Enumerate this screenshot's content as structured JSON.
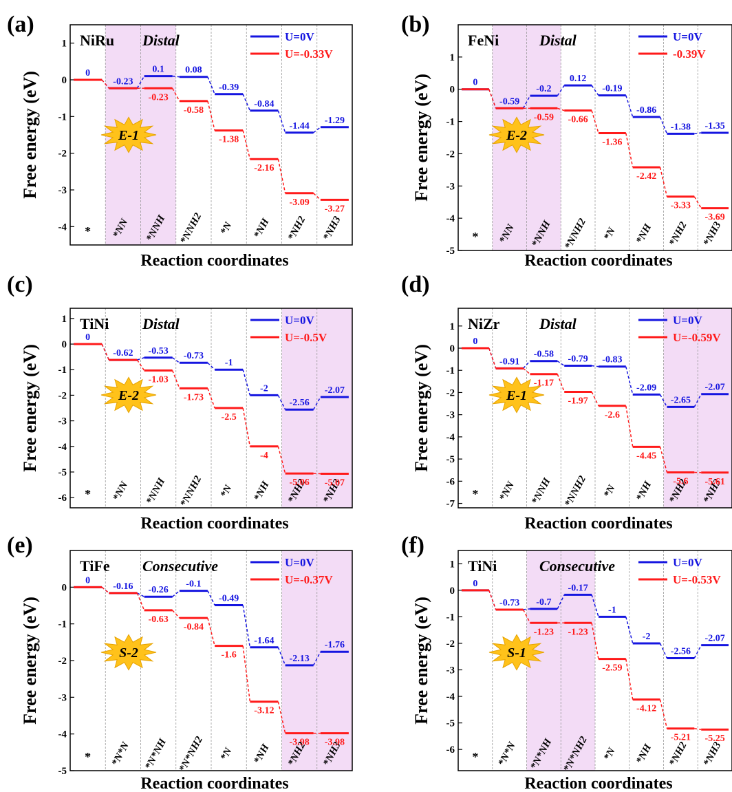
{
  "figure": {
    "ylabel": "Free energy (eV)",
    "xlabel": "Reaction coordinates",
    "legend_u0": "U=0V"
  },
  "colors": {
    "u0": "#1515e0",
    "uneg": "#ff1a1a",
    "highlight": "#f3dcf6",
    "badge": "#ffc21a",
    "gridline": "#999999"
  },
  "chart_data": [
    {
      "type": "line",
      "panel": "(a)",
      "system": "NiRu",
      "mechanism": "Distal",
      "badge": "E-1",
      "categories": [
        "*",
        "*NN",
        "*NNH",
        "*NNH2",
        "*N",
        "*NH",
        "*NH2",
        "*NH3"
      ],
      "ylim": [
        -4.5,
        1.5
      ],
      "yticks": [
        -4,
        -3,
        -2,
        -1,
        0,
        1
      ],
      "highlight": [
        1,
        2
      ],
      "series": [
        {
          "name": "U=0V",
          "values": [
            0,
            -0.23,
            0.1,
            0.08,
            -0.39,
            -0.84,
            -1.44,
            -1.29
          ],
          "labels": [
            "0",
            "-0.23",
            "0.1",
            "0.08",
            "-0.39",
            "-0.84",
            "-1.44",
            "-1.29"
          ]
        },
        {
          "name": "U=-0.33V",
          "values": [
            0,
            -0.23,
            -0.23,
            -0.58,
            -1.38,
            -2.16,
            -3.09,
            -3.27
          ],
          "labels": [
            "",
            "",
            "-0.23",
            "-0.58",
            "-1.38",
            "-2.16",
            "-3.09",
            "-3.27"
          ]
        }
      ]
    },
    {
      "type": "line",
      "panel": "(b)",
      "system": "FeNi",
      "mechanism": "Distal",
      "badge": "E-2",
      "categories": [
        "*",
        "*NN",
        "*NNH",
        "*NNH2",
        "*N",
        "*NH",
        "*NH2",
        "*NH3"
      ],
      "ylim": [
        -5,
        2
      ],
      "yticks": [
        -5,
        -4,
        -3,
        -2,
        -1,
        0,
        1
      ],
      "highlight": [
        1,
        2
      ],
      "series": [
        {
          "name": "U=0V",
          "values": [
            0,
            -0.59,
            -0.2,
            0.12,
            -0.19,
            -0.86,
            -1.38,
            -1.35
          ],
          "labels": [
            "0",
            "-0.59",
            "-0.2",
            "0.12",
            "-0.19",
            "-0.86",
            "-1.38",
            "-1.35"
          ]
        },
        {
          "name": "-0.39V",
          "values": [
            0,
            -0.59,
            -0.59,
            -0.66,
            -1.36,
            -2.42,
            -3.33,
            -3.69
          ],
          "labels": [
            "",
            "",
            "-0.59",
            "-0.66",
            "-1.36",
            "-2.42",
            "-3.33",
            "-3.69"
          ]
        }
      ]
    },
    {
      "type": "line",
      "panel": "(c)",
      "system": "TiNi",
      "mechanism": "Distal",
      "badge": "E-2",
      "categories": [
        "*",
        "*NN",
        "*NNH",
        "*NNH2",
        "*N",
        "*NH",
        "*NH2",
        "*NH3"
      ],
      "ylim": [
        -6.4,
        1.4
      ],
      "yticks": [
        -6,
        -5,
        -4,
        -3,
        -2,
        -1,
        0,
        1
      ],
      "highlight": [
        6,
        7
      ],
      "series": [
        {
          "name": "U=0V",
          "values": [
            0,
            -0.62,
            -0.53,
            -0.73,
            -1,
            -2,
            -2.56,
            -2.07
          ],
          "labels": [
            "0",
            "-0.62",
            "-0.53",
            "-0.73",
            "-1",
            "-2",
            "-2.56",
            "-2.07"
          ]
        },
        {
          "name": "U=-0.5V",
          "values": [
            0,
            -0.62,
            -1.03,
            -1.73,
            -2.5,
            -4,
            -5.06,
            -5.07
          ],
          "labels": [
            "",
            "",
            "-1.03",
            "-1.73",
            "-2.5",
            "-4",
            "-5.06",
            "-5.07"
          ]
        }
      ]
    },
    {
      "type": "line",
      "panel": "(d)",
      "system": "NiZr",
      "mechanism": "Distal",
      "badge": "E-1",
      "categories": [
        "*",
        "*NN",
        "*NNH",
        "*NNH2",
        "*N",
        "*NH",
        "*NH2",
        "*NH3"
      ],
      "ylim": [
        -7.2,
        1.8
      ],
      "yticks": [
        -7,
        -6,
        -5,
        -4,
        -3,
        -2,
        -1,
        0,
        1
      ],
      "highlight": [
        6,
        7
      ],
      "series": [
        {
          "name": "U=0V",
          "values": [
            0,
            -0.91,
            -0.58,
            -0.79,
            -0.83,
            -2.09,
            -2.65,
            -2.07
          ],
          "labels": [
            "0",
            "-0.91",
            "-0.58",
            "-0.79",
            "-0.83",
            "-2.09",
            "-2.65",
            "-2.07"
          ]
        },
        {
          "name": "U=-0.59V",
          "values": [
            0,
            -0.91,
            -1.17,
            -1.97,
            -2.6,
            -4.45,
            -5.6,
            -5.61
          ],
          "labels": [
            "",
            "",
            "-1.17",
            "-1.97",
            "-2.6",
            "-4.45",
            "-5.6",
            "-5.61"
          ]
        }
      ]
    },
    {
      "type": "line",
      "panel": "(e)",
      "system": "TiFe",
      "mechanism": "Consecutive",
      "badge": "S-2",
      "categories": [
        "*",
        "*N*N",
        "*N*NH",
        "*N*NH2",
        "*N",
        "*NH",
        "*NH2",
        "*NH3"
      ],
      "ylim": [
        -5,
        1
      ],
      "yticks": [
        -5,
        -4,
        -3,
        -2,
        -1,
        0
      ],
      "highlight": [
        6,
        7
      ],
      "series": [
        {
          "name": "U=0V",
          "values": [
            0,
            -0.16,
            -0.26,
            -0.1,
            -0.49,
            -1.64,
            -2.13,
            -1.76
          ],
          "labels": [
            "0",
            "-0.16",
            "-0.26",
            "-0.1",
            "-0.49",
            "-1.64",
            "-2.13",
            "-1.76"
          ]
        },
        {
          "name": "U=-0.37V",
          "values": [
            0,
            -0.16,
            -0.63,
            -0.84,
            -1.6,
            -3.12,
            -3.98,
            -3.98
          ],
          "labels": [
            "",
            "",
            "-0.63",
            "-0.84",
            "-1.6",
            "-3.12",
            "-3.98",
            "-3.98"
          ]
        }
      ]
    },
    {
      "type": "line",
      "panel": "(f)",
      "system": "TiNi",
      "mechanism": "Consecutive",
      "badge": "S-1",
      "categories": [
        "*",
        "*N*N",
        "*N*NH",
        "*N*NH2",
        "*N",
        "*NH",
        "*NH2",
        "*NH3"
      ],
      "ylim": [
        -6.8,
        1.5
      ],
      "yticks": [
        -6,
        -5,
        -4,
        -3,
        -2,
        -1,
        0,
        1
      ],
      "highlight": [
        2,
        3
      ],
      "series": [
        {
          "name": "U=0V",
          "values": [
            0,
            -0.73,
            -0.7,
            -0.17,
            -1,
            -2,
            -2.56,
            -2.07
          ],
          "labels": [
            "0",
            "-0.73",
            "-0.7",
            "-0.17",
            "-1",
            "-2",
            "-2.56",
            "-2.07"
          ]
        },
        {
          "name": "U=-0.53V",
          "values": [
            0,
            -0.73,
            -1.23,
            -1.23,
            -2.59,
            -4.12,
            -5.21,
            -5.25
          ],
          "labels": [
            "",
            "",
            "-1.23",
            "-1.23",
            "-2.59",
            "-4.12",
            "-5.21",
            "-5.25"
          ]
        }
      ]
    }
  ]
}
